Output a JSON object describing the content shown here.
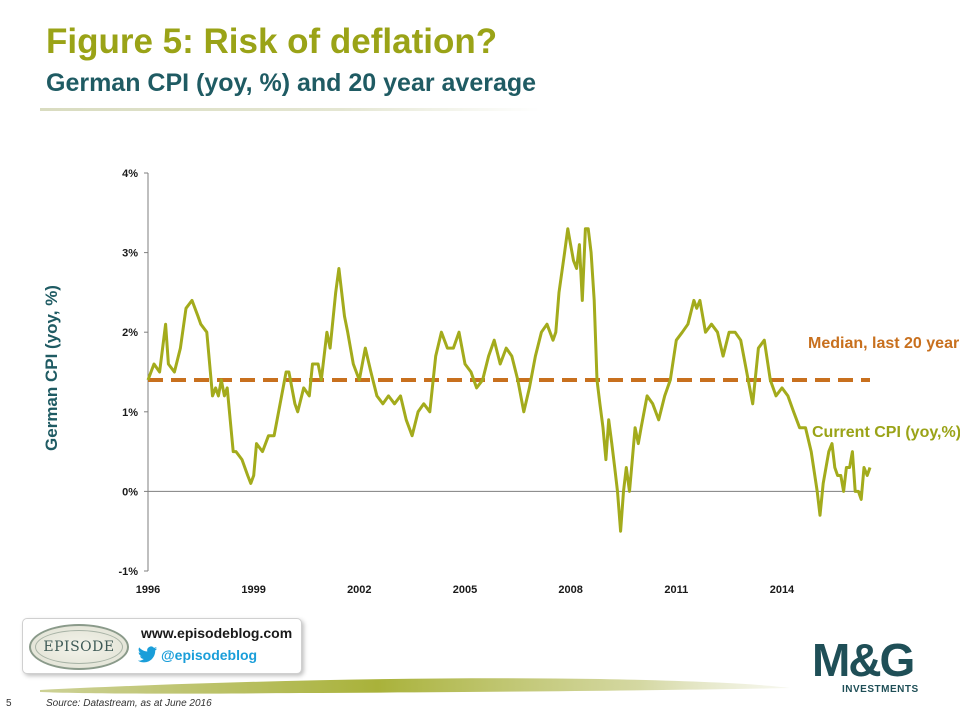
{
  "header": {
    "title": "Figure 5: Risk of deflation?",
    "subtitle": "German CPI (yoy, %) and 20 year average"
  },
  "annotations": {
    "median": "Median, last 20 years",
    "current": "Current CPI (yoy,%)"
  },
  "badge": {
    "logo_text": "EPISODE",
    "url": "www.episodeblog.com",
    "handle": "@episodeblog",
    "icon": "twitter-bird-icon"
  },
  "brand": {
    "logo_main": "M&G",
    "logo_sub": "INVESTMENTS"
  },
  "footer": {
    "page_number": "5",
    "source": "Source: Datastream, as at June 2016"
  },
  "colors": {
    "title": "#9aa317",
    "subtitle": "#1f5b63",
    "cpi_line": "#a3ab1c",
    "median_line": "#c8701e"
  },
  "chart_data": {
    "type": "line",
    "title": "German CPI (yoy, %) and 20 year average",
    "ylabel": "German CPI (yoy, %)",
    "xlabel": "",
    "xlim": [
      1996,
      2016.5
    ],
    "ylim": [
      -1,
      4
    ],
    "y_ticks": [
      -1,
      0,
      1,
      2,
      3,
      4
    ],
    "y_tick_labels": [
      "-1%",
      "0%",
      "1%",
      "2%",
      "3%",
      "4%"
    ],
    "x_ticks": [
      1996,
      1999,
      2002,
      2005,
      2008,
      2011,
      2014
    ],
    "x_tick_labels": [
      "1996",
      "1999",
      "2002",
      "2005",
      "2008",
      "2011",
      "2014"
    ],
    "grid": false,
    "legend": "none",
    "series": [
      {
        "name": "Current CPI (yoy,%)",
        "style": "solid",
        "x": [
          1996.0,
          1996.17,
          1996.33,
          1996.5,
          1996.58,
          1996.75,
          1996.92,
          1997.08,
          1997.25,
          1997.42,
          1997.5,
          1997.67,
          1997.83,
          1997.92,
          1998.0,
          1998.08,
          1998.17,
          1998.25,
          1998.42,
          1998.5,
          1998.67,
          1998.83,
          1998.92,
          1999.0,
          1999.08,
          1999.25,
          1999.42,
          1999.58,
          1999.75,
          1999.92,
          2000.0,
          2000.17,
          2000.25,
          2000.42,
          2000.58,
          2000.67,
          2000.83,
          2000.92,
          2001.08,
          2001.17,
          2001.33,
          2001.42,
          2001.58,
          2001.67,
          2001.83,
          2002.0,
          2002.17,
          2002.33,
          2002.5,
          2002.67,
          2002.83,
          2003.0,
          2003.17,
          2003.33,
          2003.5,
          2003.67,
          2003.83,
          2004.0,
          2004.17,
          2004.33,
          2004.5,
          2004.67,
          2004.83,
          2005.0,
          2005.17,
          2005.33,
          2005.5,
          2005.67,
          2005.83,
          2006.0,
          2006.17,
          2006.33,
          2006.5,
          2006.67,
          2006.83,
          2007.0,
          2007.17,
          2007.33,
          2007.5,
          2007.58,
          2007.67,
          2007.83,
          2007.92,
          2008.0,
          2008.08,
          2008.17,
          2008.25,
          2008.33,
          2008.42,
          2008.5,
          2008.58,
          2008.67,
          2008.75,
          2008.83,
          2008.92,
          2009.0,
          2009.08,
          2009.17,
          2009.25,
          2009.33,
          2009.42,
          2009.5,
          2009.58,
          2009.67,
          2009.75,
          2009.83,
          2009.92,
          2010.0,
          2010.17,
          2010.33,
          2010.5,
          2010.67,
          2010.83,
          2011.0,
          2011.17,
          2011.33,
          2011.5,
          2011.58,
          2011.67,
          2011.83,
          2012.0,
          2012.17,
          2012.33,
          2012.5,
          2012.67,
          2012.83,
          2013.0,
          2013.17,
          2013.33,
          2013.5,
          2013.67,
          2013.83,
          2014.0,
          2014.17,
          2014.33,
          2014.5,
          2014.67,
          2014.83,
          2015.0,
          2015.08,
          2015.17,
          2015.25,
          2015.33,
          2015.42,
          2015.5,
          2015.58,
          2015.67,
          2015.75,
          2015.83,
          2015.92,
          2016.0,
          2016.08,
          2016.17,
          2016.25,
          2016.33,
          2016.42,
          2016.5
        ],
        "y": [
          1.4,
          1.6,
          1.5,
          2.1,
          1.6,
          1.5,
          1.8,
          2.3,
          2.4,
          2.2,
          2.1,
          2.0,
          1.2,
          1.3,
          1.2,
          1.4,
          1.2,
          1.3,
          0.5,
          0.5,
          0.4,
          0.2,
          0.1,
          0.2,
          0.6,
          0.5,
          0.7,
          0.7,
          1.1,
          1.5,
          1.5,
          1.1,
          1.0,
          1.3,
          1.2,
          1.6,
          1.6,
          1.4,
          2.0,
          1.8,
          2.5,
          2.8,
          2.2,
          2.0,
          1.6,
          1.4,
          1.8,
          1.5,
          1.2,
          1.1,
          1.2,
          1.1,
          1.2,
          0.9,
          0.7,
          1.0,
          1.1,
          1.0,
          1.7,
          2.0,
          1.8,
          1.8,
          2.0,
          1.6,
          1.5,
          1.3,
          1.4,
          1.7,
          1.9,
          1.6,
          1.8,
          1.7,
          1.4,
          1.0,
          1.3,
          1.7,
          2.0,
          2.1,
          1.9,
          2.0,
          2.5,
          3.0,
          3.3,
          3.1,
          2.9,
          2.8,
          3.1,
          2.4,
          3.3,
          3.3,
          3.0,
          2.4,
          1.4,
          1.1,
          0.8,
          0.4,
          0.9,
          0.6,
          0.3,
          0.0,
          -0.5,
          0.0,
          0.3,
          0.0,
          0.4,
          0.8,
          0.6,
          0.8,
          1.2,
          1.1,
          0.9,
          1.2,
          1.4,
          1.9,
          2.0,
          2.1,
          2.4,
          2.3,
          2.4,
          2.0,
          2.1,
          2.0,
          1.7,
          2.0,
          2.0,
          1.9,
          1.5,
          1.1,
          1.8,
          1.9,
          1.4,
          1.2,
          1.3,
          1.2,
          1.0,
          0.8,
          0.8,
          0.5,
          0.0,
          -0.3,
          0.1,
          0.3,
          0.5,
          0.6,
          0.3,
          0.2,
          0.2,
          0.0,
          0.3,
          0.3,
          0.5,
          0.0,
          0.0,
          -0.1,
          0.3,
          0.2,
          0.3
        ]
      },
      {
        "name": "Median, last 20 years",
        "style": "dashed",
        "x": [
          1996.0,
          2016.5
        ],
        "y": [
          1.4,
          1.4
        ]
      }
    ]
  }
}
